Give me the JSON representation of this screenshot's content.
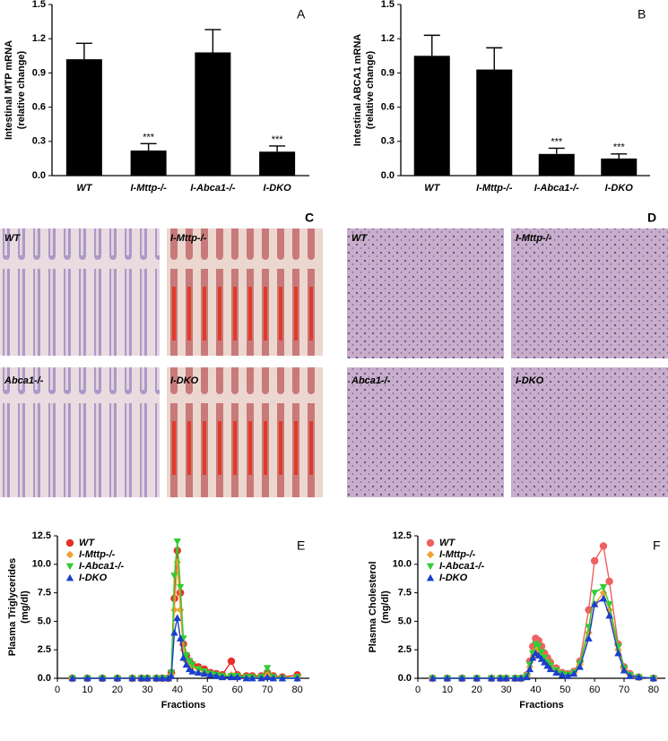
{
  "chart_data": [
    {
      "type": "bar",
      "panel": "A",
      "ylabel": [
        "Intestinal MTP mRNA",
        "(relative change)"
      ],
      "categories": [
        "WT",
        "I-Mttp-/-",
        "I-Abca1-/-",
        "I-DKO"
      ],
      "values": [
        1.02,
        0.22,
        1.08,
        0.21
      ],
      "errors": [
        0.14,
        0.06,
        0.2,
        0.05
      ],
      "significance": [
        null,
        "***",
        null,
        "***"
      ],
      "color": "#000000",
      "ylim": [
        0,
        1.5
      ],
      "yticks": [
        {
          "value": 0,
          "label": "0.0"
        },
        {
          "value": 0.3,
          "label": "0.3"
        },
        {
          "value": 0.6,
          "label": "0.6"
        },
        {
          "value": 0.9,
          "label": "0.9"
        },
        {
          "value": 1.2,
          "label": "1.2"
        },
        {
          "value": 1.5,
          "label": "1.5"
        }
      ]
    },
    {
      "type": "bar",
      "panel": "B",
      "ylabel": [
        "Intestinal ABCA1 mRNA",
        "(relative change)"
      ],
      "categories": [
        "WT",
        "I-Mttp-/-",
        "I-Abca1-/-",
        "I-DKO"
      ],
      "values": [
        1.05,
        0.93,
        0.19,
        0.15
      ],
      "errors": [
        0.18,
        0.19,
        0.05,
        0.04
      ],
      "significance": [
        null,
        null,
        "***",
        "***"
      ],
      "color": "#000000",
      "ylim": [
        0,
        1.5
      ],
      "yticks": [
        {
          "value": 0,
          "label": "0.0"
        },
        {
          "value": 0.3,
          "label": "0.3"
        },
        {
          "value": 0.6,
          "label": "0.6"
        },
        {
          "value": 0.9,
          "label": "0.9"
        },
        {
          "value": 1.2,
          "label": "1.2"
        },
        {
          "value": 1.5,
          "label": "1.5"
        }
      ]
    },
    {
      "type": "line",
      "panel": "E",
      "ylabel": [
        "Plasma Triglycerides",
        "(mg/dl)"
      ],
      "xlabel": "Fractions",
      "legend": "upper left",
      "x": [
        5,
        10,
        15,
        20,
        25,
        28,
        30,
        33,
        35,
        37,
        38,
        39,
        40,
        41,
        42,
        43,
        44,
        45,
        47,
        49,
        51,
        53,
        55,
        58,
        60,
        63,
        65,
        68,
        70,
        72,
        75,
        80
      ],
      "series": [
        {
          "name": "WT",
          "color": "#e8302a",
          "marker": "circle",
          "values": [
            0,
            0,
            0,
            0,
            0,
            0,
            0,
            0,
            0,
            0,
            0.5,
            7,
            11.2,
            7.5,
            3,
            2,
            1.5,
            1.2,
            1,
            0.8,
            0.5,
            0.4,
            0.3,
            1.5,
            0.3,
            0.2,
            0.2,
            0.2,
            0.5,
            0.2,
            0.1,
            0.3
          ]
        },
        {
          "name": "I-Mttp-/-",
          "color": "#f0a030",
          "marker": "diamond",
          "values": [
            0,
            0,
            0,
            0,
            0,
            0,
            0,
            0,
            0,
            0,
            0.3,
            6,
            10.2,
            6,
            2.5,
            1.5,
            1.2,
            1,
            0.8,
            0.5,
            0.4,
            0.3,
            0.2,
            0.3,
            0.2,
            0.1,
            0.1,
            0.1,
            0.3,
            0.1,
            0,
            0.1
          ]
        },
        {
          "name": "I-Abca1-/-",
          "color": "#33cc33",
          "marker": "triangle-down",
          "values": [
            0,
            0,
            0,
            0,
            0,
            0,
            0,
            0,
            0,
            0,
            0.5,
            9,
            12,
            8,
            3.5,
            2,
            1.5,
            1.2,
            0.8,
            0.6,
            0.4,
            0.3,
            0.2,
            0.2,
            0.2,
            0.1,
            0.1,
            0.1,
            0.9,
            0.1,
            0,
            0.1
          ]
        },
        {
          "name": "I-DKO",
          "color": "#1a3fcc",
          "marker": "triangle-up",
          "values": [
            0,
            0,
            0,
            0,
            0,
            0,
            0,
            0,
            0,
            0,
            0.2,
            4,
            5.3,
            3.5,
            1.8,
            1.2,
            0.8,
            0.6,
            0.5,
            0.4,
            0.3,
            0.2,
            0.1,
            0.1,
            0.1,
            0,
            0,
            0,
            0.1,
            0,
            0,
            0
          ]
        }
      ],
      "xlim": [
        0,
        84
      ],
      "xticks": [
        0,
        10,
        20,
        30,
        40,
        50,
        60,
        70,
        80
      ],
      "ylim": [
        0,
        12.5
      ],
      "yticks": [
        {
          "value": 0,
          "label": "0.0"
        },
        2.5,
        {
          "value": 5,
          "label": "5.0"
        },
        7.5,
        {
          "value": 10,
          "label": "10.0"
        },
        12.5
      ]
    },
    {
      "type": "line",
      "panel": "F",
      "ylabel": [
        "Plasma Cholesterol",
        "(mg/dl)"
      ],
      "xlabel": "Fractions",
      "legend": "upper left",
      "x": [
        5,
        10,
        15,
        20,
        25,
        28,
        30,
        33,
        35,
        37,
        38,
        39,
        40,
        41,
        42,
        43,
        44,
        45,
        47,
        49,
        51,
        53,
        55,
        58,
        60,
        63,
        65,
        68,
        70,
        72,
        75,
        80
      ],
      "series": [
        {
          "name": "WT",
          "color": "#f06060",
          "marker": "circle",
          "values": [
            0,
            0,
            0,
            0,
            0,
            0,
            0,
            0,
            0,
            0.3,
            1.5,
            2.8,
            3.5,
            3.3,
            2.8,
            2.2,
            1.8,
            1.4,
            0.9,
            0.5,
            0.4,
            0.6,
            1.5,
            6,
            10.3,
            11.6,
            8.5,
            3,
            1,
            0.4,
            0.1,
            0
          ]
        },
        {
          "name": "I-Mttp-/-",
          "color": "#f0a030",
          "marker": "diamond",
          "values": [
            0,
            0,
            0,
            0,
            0,
            0,
            0,
            0,
            0,
            0.2,
            1,
            1.8,
            2.5,
            2.3,
            2,
            1.6,
            1.3,
            1,
            0.7,
            0.4,
            0.3,
            0.5,
            1.2,
            4,
            6.5,
            7.5,
            6,
            2.5,
            0.8,
            0.3,
            0.1,
            0
          ]
        },
        {
          "name": "I-Abca1-/-",
          "color": "#33cc33",
          "marker": "triangle-down",
          "values": [
            0,
            0,
            0,
            0,
            0,
            0,
            0,
            0,
            0,
            0.2,
            1.2,
            2.2,
            3,
            2.8,
            2.3,
            1.8,
            1.4,
            1.1,
            0.7,
            0.4,
            0.3,
            0.5,
            1.3,
            4.5,
            7.5,
            8,
            6.5,
            2.8,
            0.9,
            0.3,
            0.1,
            0
          ]
        },
        {
          "name": "I-DKO",
          "color": "#1a3fcc",
          "marker": "triangle-up",
          "values": [
            0,
            0,
            0,
            0,
            0,
            0,
            0,
            0,
            0,
            0.1,
            0.8,
            1.8,
            2.2,
            2,
            1.7,
            1.4,
            1.1,
            0.8,
            0.5,
            0.3,
            0.2,
            0.4,
            1,
            3.5,
            6.5,
            7,
            5.5,
            2.2,
            0.7,
            0.2,
            0.1,
            0
          ]
        }
      ],
      "xlim": [
        0,
        84
      ],
      "xticks": [
        0,
        10,
        20,
        30,
        40,
        50,
        60,
        70,
        80
      ],
      "ylim": [
        0,
        12.5
      ],
      "yticks": [
        {
          "value": 0,
          "label": "0.0"
        },
        2.5,
        {
          "value": 5,
          "label": "5.0"
        },
        7.5,
        {
          "value": 10,
          "label": "10.0"
        },
        12.5
      ]
    }
  ],
  "micrographs": [
    {
      "panel": "C",
      "tiles": [
        "WT",
        "I-Mttp-/-",
        "Abca1-/-",
        "I-DKO"
      ]
    },
    {
      "panel": "D",
      "tiles": [
        "WT",
        "I-Mttp-/-",
        "Abca1-/-",
        "I-DKO"
      ]
    }
  ]
}
